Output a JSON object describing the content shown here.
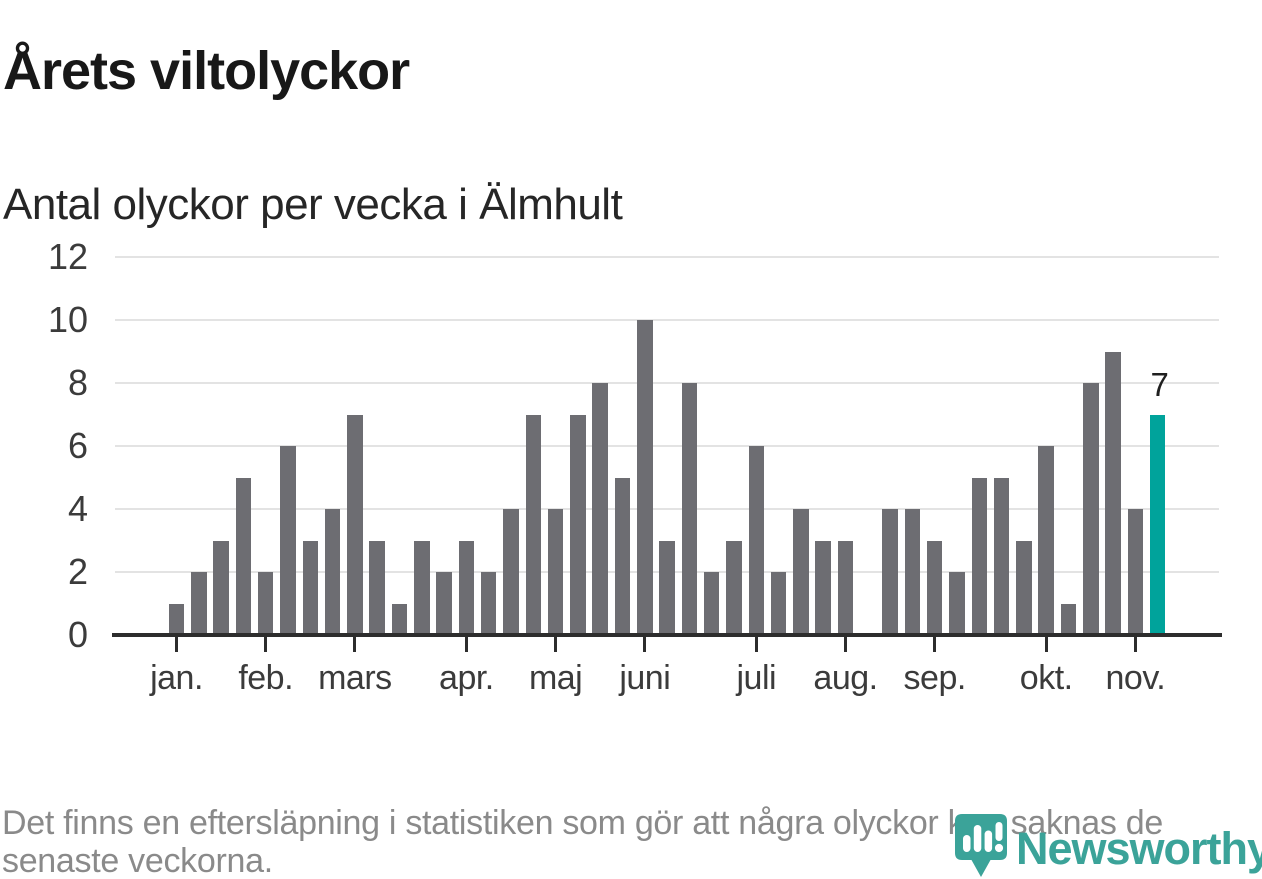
{
  "header": {
    "title": "Årets viltolyckor",
    "subtitle": "Antal olyckor per vecka i Älmhult"
  },
  "chart_data": {
    "type": "bar",
    "title": "Årets viltolyckor",
    "subtitle": "Antal olyckor per vecka i Älmhult",
    "ylabel": "",
    "xlabel": "",
    "x_unit": "vecka",
    "x_start_week": 1,
    "values": [
      1,
      2,
      3,
      5,
      2,
      6,
      3,
      4,
      7,
      3,
      1,
      3,
      2,
      3,
      2,
      4,
      7,
      4,
      7,
      8,
      5,
      10,
      3,
      8,
      2,
      3,
      6,
      2,
      4,
      3,
      3,
      0,
      4,
      4,
      3,
      2,
      5,
      5,
      3,
      6,
      1,
      8,
      9,
      4,
      7
    ],
    "month_ticks": [
      {
        "label": "jan.",
        "week": 1
      },
      {
        "label": "feb.",
        "week": 5
      },
      {
        "label": "mars",
        "week": 9
      },
      {
        "label": "apr.",
        "week": 14
      },
      {
        "label": "maj",
        "week": 18
      },
      {
        "label": "juni",
        "week": 22
      },
      {
        "label": "juli",
        "week": 27
      },
      {
        "label": "aug.",
        "week": 31
      },
      {
        "label": "sep.",
        "week": 35
      },
      {
        "label": "okt.",
        "week": 40
      },
      {
        "label": "nov.",
        "week": 44
      }
    ],
    "yticks": [
      0,
      2,
      4,
      6,
      8,
      10,
      12
    ],
    "ylim": [
      0,
      12
    ],
    "grid": "horizontal",
    "legend": "none",
    "highlight_last_bar": true,
    "annotation": {
      "text": "7",
      "week": 45
    }
  },
  "colors": {
    "title": "#181818",
    "subtitle": "#262626",
    "bar": "#6d6d72",
    "highlight": "#00a39b",
    "grid": "#e3e3e3",
    "axis": "#2d2d2d",
    "tick_label": "#3b3b3b",
    "annotation": "#1f1f1f",
    "footer": "#8a8a8a",
    "logo": "#3ba399"
  },
  "footer": {
    "lines": [
      "Det finns en eftersläpning i statistiken som gör att några olyckor kan saknas de",
      "senaste veckorna."
    ],
    "full_text": "Det finns en eftersläpning i statistiken som gör att några olyckor kan saknas de senaste veckorna."
  },
  "logo": {
    "wordmark": "Newsworthy",
    "icon": "newsworthy-barchart-pin-icon"
  }
}
